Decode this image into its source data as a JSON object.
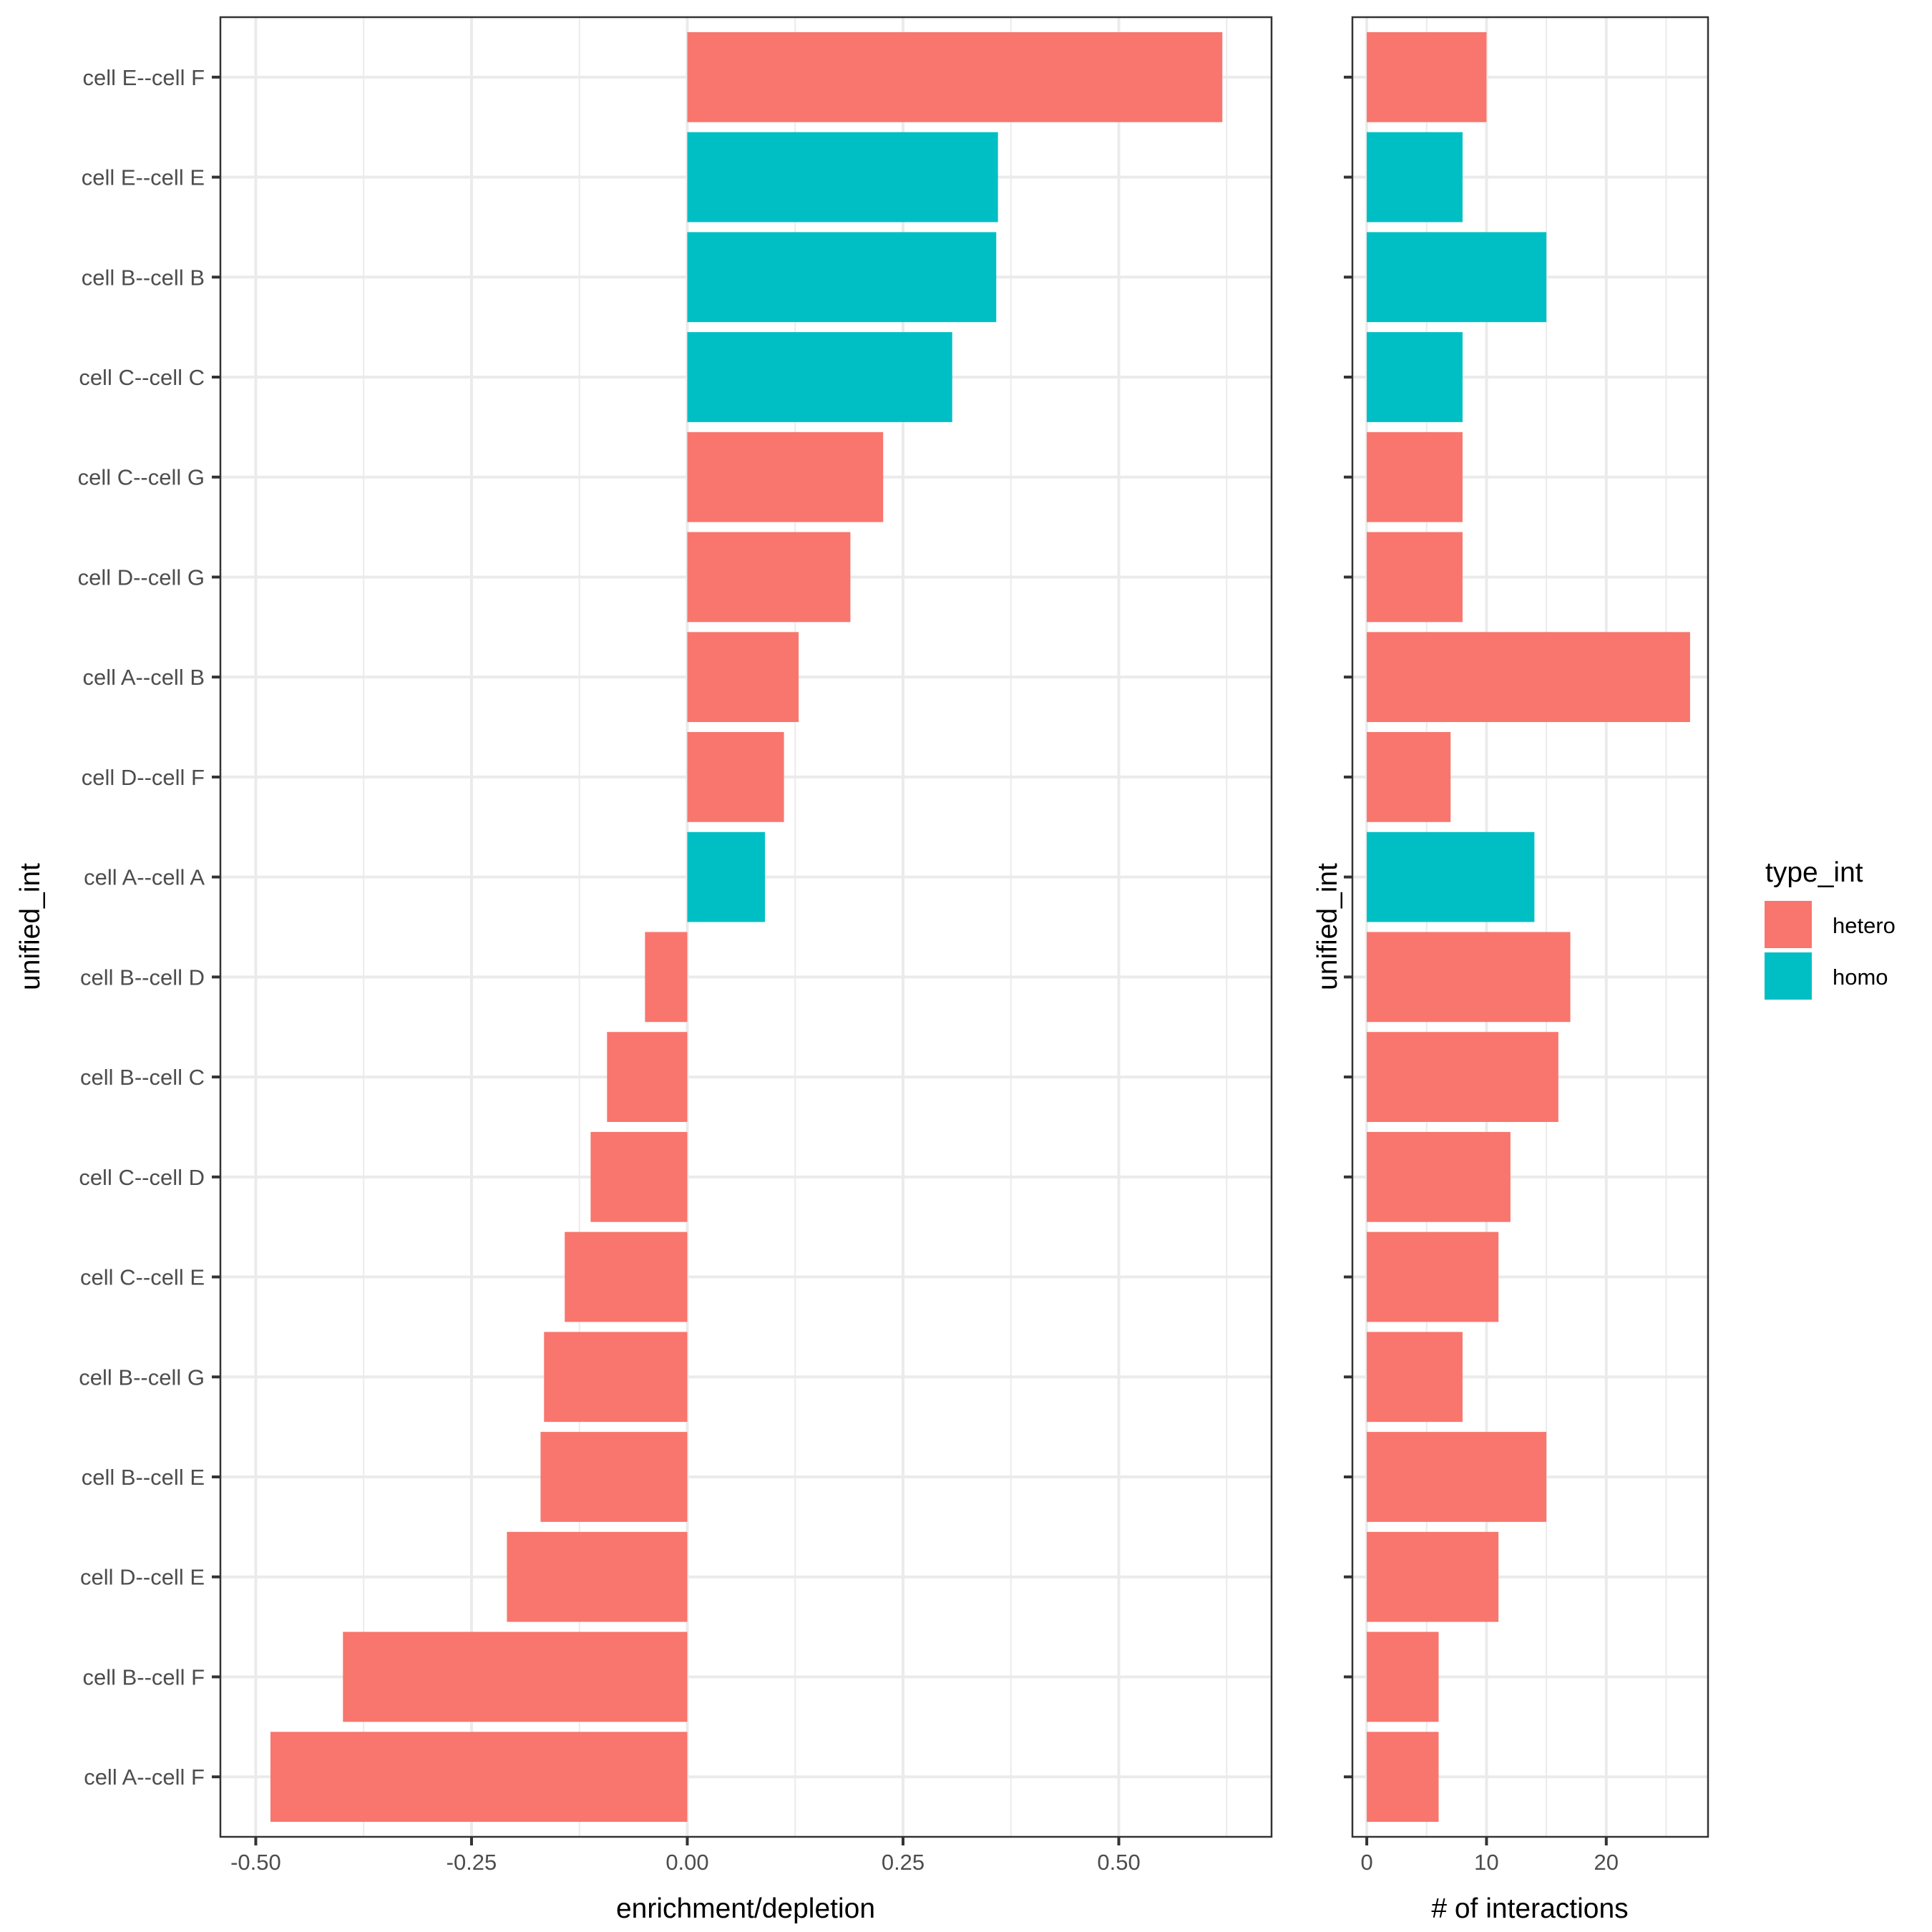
{
  "chart_data": [
    {
      "type": "bar",
      "orientation": "horizontal",
      "title": "",
      "xlabel": "enrichment/depletion",
      "ylabel": "unified_int",
      "xlim": [
        -0.541,
        0.677
      ],
      "xticks": [
        -0.5,
        -0.25,
        0.0,
        0.25,
        0.5
      ],
      "xtick_labels": [
        "-0.50",
        "-0.25",
        "0.00",
        "0.25",
        "0.50"
      ],
      "grid": true,
      "categories": [
        "cell E--cell F",
        "cell E--cell E",
        "cell B--cell B",
        "cell C--cell C",
        "cell C--cell G",
        "cell D--cell G",
        "cell A--cell B",
        "cell D--cell F",
        "cell A--cell A",
        "cell B--cell D",
        "cell B--cell C",
        "cell C--cell D",
        "cell C--cell E",
        "cell B--cell G",
        "cell B--cell E",
        "cell D--cell E",
        "cell B--cell F",
        "cell A--cell F"
      ],
      "values": [
        0.62,
        0.36,
        0.358,
        0.307,
        0.227,
        0.189,
        0.129,
        0.112,
        0.09,
        -0.049,
        -0.093,
        -0.112,
        -0.142,
        -0.166,
        -0.17,
        -0.209,
        -0.399,
        -0.483
      ],
      "groups": [
        "hetero",
        "homo",
        "homo",
        "homo",
        "hetero",
        "hetero",
        "hetero",
        "hetero",
        "homo",
        "hetero",
        "hetero",
        "hetero",
        "hetero",
        "hetero",
        "hetero",
        "hetero",
        "hetero",
        "hetero"
      ]
    },
    {
      "type": "bar",
      "orientation": "horizontal",
      "title": "",
      "xlabel": "# of interactions",
      "ylabel": "unified_int",
      "xlim": [
        -1.2,
        28.5
      ],
      "xticks": [
        0,
        10,
        20
      ],
      "xtick_labels": [
        "0",
        "10",
        "20"
      ],
      "grid": true,
      "categories": [
        "cell E--cell F",
        "cell E--cell E",
        "cell B--cell B",
        "cell C--cell C",
        "cell C--cell G",
        "cell D--cell G",
        "cell A--cell B",
        "cell D--cell F",
        "cell A--cell A",
        "cell B--cell D",
        "cell B--cell C",
        "cell C--cell D",
        "cell C--cell E",
        "cell B--cell G",
        "cell B--cell E",
        "cell D--cell E",
        "cell B--cell F",
        "cell A--cell F"
      ],
      "values": [
        10,
        8,
        15,
        8,
        8,
        8,
        27,
        7,
        14,
        17,
        16,
        12,
        11,
        8,
        15,
        11,
        6,
        6
      ],
      "groups": [
        "hetero",
        "homo",
        "homo",
        "homo",
        "hetero",
        "hetero",
        "hetero",
        "hetero",
        "homo",
        "hetero",
        "hetero",
        "hetero",
        "hetero",
        "hetero",
        "hetero",
        "hetero",
        "hetero",
        "hetero"
      ]
    }
  ],
  "legend": {
    "title": "type_int",
    "placement": "right",
    "items": [
      {
        "label": "hetero",
        "color": "#F8766D"
      },
      {
        "label": "homo",
        "color": "#00BFC4"
      }
    ]
  },
  "colors": {
    "hetero": "#F8766D",
    "homo": "#00BFC4"
  }
}
